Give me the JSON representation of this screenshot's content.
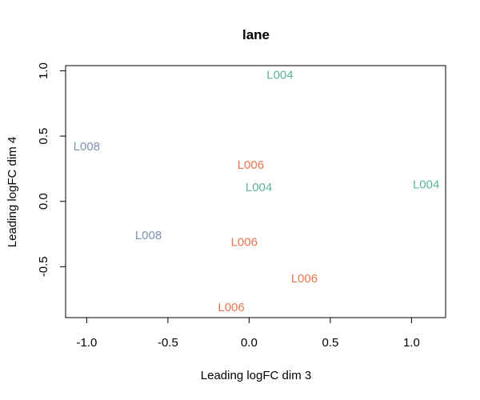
{
  "chart_data": {
    "type": "scatter",
    "title": "lane",
    "xlabel": "Leading logFC dim 3",
    "ylabel": "Leading logFC dim 4",
    "xlim": [
      -1.13,
      1.21
    ],
    "ylim": [
      -0.89,
      1.04
    ],
    "xticks": [
      -1.0,
      -0.5,
      0.0,
      0.5,
      1.0
    ],
    "xtick_labels": [
      "-1.0",
      "-0.5",
      "0.0",
      "0.5",
      "1.0"
    ],
    "yticks": [
      -0.5,
      0.0,
      0.5,
      1.0
    ],
    "ytick_labels": [
      "-0.5",
      "0.0",
      "0.5",
      "1.0"
    ],
    "grid": false,
    "colors": {
      "L004": "#5BB593",
      "L006": "#EA7450",
      "L008": "#7F90B5"
    },
    "points": [
      {
        "label": "L004",
        "x": 0.19,
        "y": 0.97
      },
      {
        "label": "L008",
        "x": -1.0,
        "y": 0.42
      },
      {
        "label": "L006",
        "x": 0.01,
        "y": 0.28
      },
      {
        "label": "L004",
        "x": 0.06,
        "y": 0.11
      },
      {
        "label": "L004",
        "x": 1.09,
        "y": 0.13
      },
      {
        "label": "L008",
        "x": -0.62,
        "y": -0.26
      },
      {
        "label": "L006",
        "x": -0.03,
        "y": -0.31
      },
      {
        "label": "L006",
        "x": 0.34,
        "y": -0.59
      },
      {
        "label": "L006",
        "x": -0.11,
        "y": -0.81
      }
    ]
  }
}
